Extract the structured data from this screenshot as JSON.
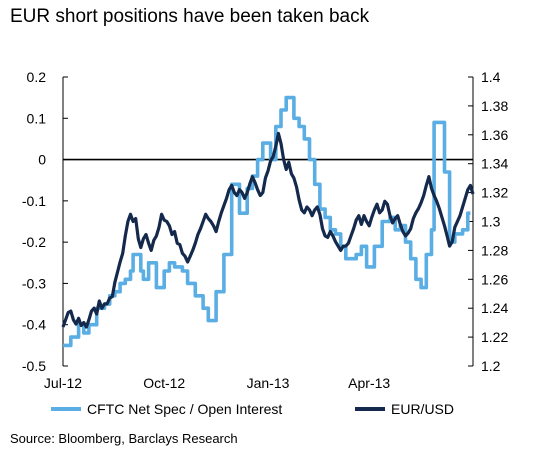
{
  "chart_data": {
    "type": "line",
    "title": "EUR short positions have been taken back",
    "source": "Source: Bloomberg, Barclays Research",
    "x_tick_labels": [
      "Jul-12",
      "Oct-12",
      "Jan-13",
      "Apr-13"
    ],
    "y_left": {
      "range": [
        -0.5,
        0.2
      ],
      "ticks": [
        "0.2",
        "0.1",
        "0",
        "-0.1",
        "-0.2",
        "-0.3",
        "-0.4",
        "-0.5"
      ]
    },
    "y_right": {
      "range": [
        1.2,
        1.4
      ],
      "ticks": [
        "1.4",
        "1.38",
        "1.36",
        "1.34",
        "1.32",
        "1.3",
        "1.28",
        "1.26",
        "1.24",
        "1.22",
        "1.2"
      ]
    },
    "zero_line": 0,
    "grid": false,
    "legend_position": "bottom",
    "colors": {
      "cftc": "#5aaee3",
      "eurusd": "#14294b",
      "axis": "#000000"
    },
    "series": [
      {
        "name": "CFTC Net Spec / Open Interest",
        "axis": "left",
        "points": [
          [
            0,
            -0.45
          ],
          [
            3,
            -0.45
          ],
          [
            3,
            -0.43
          ],
          [
            6,
            -0.43
          ],
          [
            6,
            -0.4
          ],
          [
            8,
            -0.4
          ],
          [
            8,
            -0.42
          ],
          [
            10,
            -0.42
          ],
          [
            10,
            -0.4
          ],
          [
            13,
            -0.4
          ],
          [
            13,
            -0.36
          ],
          [
            16,
            -0.36
          ],
          [
            16,
            -0.35
          ],
          [
            18,
            -0.35
          ],
          [
            18,
            -0.33
          ],
          [
            20,
            -0.33
          ],
          [
            20,
            -0.32
          ],
          [
            22,
            -0.32
          ],
          [
            22,
            -0.3
          ],
          [
            24,
            -0.3
          ],
          [
            24,
            -0.29
          ],
          [
            26,
            -0.29
          ],
          [
            26,
            -0.27
          ],
          [
            27,
            -0.27
          ],
          [
            27,
            -0.23
          ],
          [
            30,
            -0.23
          ],
          [
            30,
            -0.27
          ],
          [
            31,
            -0.27
          ],
          [
            31,
            -0.29
          ],
          [
            33,
            -0.29
          ],
          [
            33,
            -0.25
          ],
          [
            36,
            -0.25
          ],
          [
            36,
            -0.31
          ],
          [
            39,
            -0.31
          ],
          [
            39,
            -0.27
          ],
          [
            41,
            -0.27
          ],
          [
            41,
            -0.25
          ],
          [
            43,
            -0.25
          ],
          [
            43,
            -0.26
          ],
          [
            46,
            -0.26
          ],
          [
            46,
            -0.27
          ],
          [
            48,
            -0.27
          ],
          [
            48,
            -0.3
          ],
          [
            51,
            -0.3
          ],
          [
            51,
            -0.33
          ],
          [
            54,
            -0.33
          ],
          [
            54,
            -0.36
          ],
          [
            56,
            -0.36
          ],
          [
            56,
            -0.39
          ],
          [
            59,
            -0.39
          ],
          [
            59,
            -0.32
          ],
          [
            62,
            -0.32
          ],
          [
            62,
            -0.23
          ],
          [
            65,
            -0.23
          ],
          [
            65,
            -0.06
          ],
          [
            68,
            -0.06
          ],
          [
            68,
            -0.13
          ],
          [
            71,
            -0.13
          ],
          [
            71,
            -0.07
          ],
          [
            73,
            -0.07
          ],
          [
            73,
            -0.04
          ],
          [
            75,
            -0.04
          ],
          [
            75,
            0.0
          ],
          [
            77,
            0.0
          ],
          [
            77,
            0.04
          ],
          [
            80,
            0.04
          ],
          [
            80,
            0.0
          ],
          [
            82,
            0.0
          ],
          [
            82,
            0.08
          ],
          [
            84,
            0.08
          ],
          [
            84,
            0.12
          ],
          [
            86,
            0.12
          ],
          [
            86,
            0.15
          ],
          [
            89,
            0.15
          ],
          [
            89,
            0.1
          ],
          [
            91,
            0.1
          ],
          [
            91,
            0.08
          ],
          [
            93,
            0.08
          ],
          [
            93,
            0.05
          ],
          [
            95,
            0.05
          ],
          [
            95,
            0.0
          ],
          [
            97,
            0.0
          ],
          [
            97,
            -0.06
          ],
          [
            99,
            -0.06
          ],
          [
            99,
            -0.12
          ],
          [
            101,
            -0.12
          ],
          [
            101,
            -0.14
          ],
          [
            103,
            -0.14
          ],
          [
            103,
            -0.17
          ],
          [
            105,
            -0.17
          ],
          [
            105,
            -0.18
          ],
          [
            107,
            -0.18
          ],
          [
            107,
            -0.21
          ],
          [
            109,
            -0.21
          ],
          [
            109,
            -0.24
          ],
          [
            113,
            -0.24
          ],
          [
            113,
            -0.23
          ],
          [
            115,
            -0.23
          ],
          [
            115,
            -0.21
          ],
          [
            117,
            -0.21
          ],
          [
            117,
            -0.26
          ],
          [
            120,
            -0.26
          ],
          [
            120,
            -0.21
          ],
          [
            123,
            -0.21
          ],
          [
            123,
            -0.15
          ],
          [
            126,
            -0.15
          ],
          [
            126,
            -0.14
          ],
          [
            128,
            -0.14
          ],
          [
            128,
            -0.17
          ],
          [
            130,
            -0.17
          ],
          [
            130,
            -0.16
          ],
          [
            132,
            -0.16
          ],
          [
            132,
            -0.2
          ],
          [
            134,
            -0.2
          ],
          [
            134,
            -0.24
          ],
          [
            136,
            -0.24
          ],
          [
            136,
            -0.29
          ],
          [
            138,
            -0.29
          ],
          [
            138,
            -0.31
          ],
          [
            140,
            -0.31
          ],
          [
            140,
            -0.23
          ],
          [
            142,
            -0.23
          ],
          [
            142,
            -0.17
          ],
          [
            143,
            -0.17
          ],
          [
            143,
            0.09
          ],
          [
            147,
            0.09
          ],
          [
            147,
            -0.03
          ],
          [
            149,
            -0.03
          ],
          [
            149,
            -0.2
          ],
          [
            151,
            -0.2
          ],
          [
            151,
            -0.18
          ],
          [
            154,
            -0.18
          ],
          [
            154,
            -0.17
          ],
          [
            156,
            -0.17
          ],
          [
            156,
            -0.13
          ],
          [
            157,
            -0.13
          ]
        ]
      },
      {
        "name": "EUR/USD",
        "axis": "right",
        "points": [
          [
            0,
            1.227
          ],
          [
            2,
            1.237
          ],
          [
            3,
            1.238
          ],
          [
            4,
            1.232
          ],
          [
            5,
            1.229
          ],
          [
            6,
            1.233
          ],
          [
            7,
            1.228
          ],
          [
            8,
            1.23
          ],
          [
            9,
            1.227
          ],
          [
            10,
            1.232
          ],
          [
            11,
            1.238
          ],
          [
            12,
            1.24
          ],
          [
            13,
            1.236
          ],
          [
            14,
            1.245
          ],
          [
            15,
            1.24
          ],
          [
            16,
            1.243
          ],
          [
            17,
            1.243
          ],
          [
            18,
            1.247
          ],
          [
            19,
            1.248
          ],
          [
            20,
            1.258
          ],
          [
            21,
            1.265
          ],
          [
            22,
            1.272
          ],
          [
            23,
            1.278
          ],
          [
            24,
            1.29
          ],
          [
            25,
            1.3
          ],
          [
            26,
            1.305
          ],
          [
            27,
            1.3
          ],
          [
            28,
            1.302
          ],
          [
            29,
            1.288
          ],
          [
            30,
            1.282
          ],
          [
            31,
            1.288
          ],
          [
            32,
            1.291
          ],
          [
            33,
            1.285
          ],
          [
            34,
            1.28
          ],
          [
            35,
            1.287
          ],
          [
            36,
            1.29
          ],
          [
            37,
            1.296
          ],
          [
            38,
            1.305
          ],
          [
            39,
            1.301
          ],
          [
            40,
            1.3
          ],
          [
            41,
            1.297
          ],
          [
            42,
            1.291
          ],
          [
            43,
            1.293
          ],
          [
            44,
            1.285
          ],
          [
            45,
            1.284
          ],
          [
            46,
            1.278
          ],
          [
            47,
            1.276
          ],
          [
            48,
            1.272
          ],
          [
            49,
            1.276
          ],
          [
            50,
            1.28
          ],
          [
            51,
            1.285
          ],
          [
            52,
            1.291
          ],
          [
            53,
            1.295
          ],
          [
            54,
            1.3
          ],
          [
            55,
            1.305
          ],
          [
            56,
            1.302
          ],
          [
            57,
            1.3
          ],
          [
            58,
            1.297
          ],
          [
            59,
            1.293
          ],
          [
            60,
            1.3
          ],
          [
            61,
            1.306
          ],
          [
            62,
            1.311
          ],
          [
            63,
            1.316
          ],
          [
            64,
            1.322
          ],
          [
            65,
            1.325
          ],
          [
            66,
            1.32
          ],
          [
            67,
            1.318
          ],
          [
            68,
            1.322
          ],
          [
            69,
            1.32
          ],
          [
            70,
            1.316
          ],
          [
            71,
            1.32
          ],
          [
            72,
            1.326
          ],
          [
            73,
            1.331
          ],
          [
            74,
            1.327
          ],
          [
            75,
            1.322
          ],
          [
            76,
            1.318
          ],
          [
            77,
            1.32
          ],
          [
            78,
            1.33
          ],
          [
            79,
            1.335
          ],
          [
            80,
            1.342
          ],
          [
            81,
            1.345
          ],
          [
            82,
            1.352
          ],
          [
            83,
            1.361
          ],
          [
            84,
            1.354
          ],
          [
            85,
            1.343
          ],
          [
            86,
            1.336
          ],
          [
            87,
            1.341
          ],
          [
            88,
            1.333
          ],
          [
            89,
            1.33
          ],
          [
            90,
            1.324
          ],
          [
            91,
            1.315
          ],
          [
            92,
            1.308
          ],
          [
            93,
            1.306
          ],
          [
            94,
            1.31
          ],
          [
            95,
            1.308
          ],
          [
            96,
            1.304
          ],
          [
            97,
            1.308
          ],
          [
            98,
            1.31
          ],
          [
            99,
            1.305
          ],
          [
            100,
            1.295
          ],
          [
            101,
            1.29
          ],
          [
            102,
            1.289
          ],
          [
            103,
            1.293
          ],
          [
            104,
            1.29
          ],
          [
            105,
            1.286
          ],
          [
            106,
            1.283
          ],
          [
            107,
            1.28
          ],
          [
            108,
            1.283
          ],
          [
            109,
            1.283
          ],
          [
            110,
            1.285
          ],
          [
            111,
            1.29
          ],
          [
            112,
            1.295
          ],
          [
            113,
            1.301
          ],
          [
            114,
            1.304
          ],
          [
            115,
            1.298
          ],
          [
            116,
            1.304
          ],
          [
            117,
            1.3
          ],
          [
            118,
            1.297
          ],
          [
            119,
            1.303
          ],
          [
            120,
            1.308
          ],
          [
            121,
            1.312
          ],
          [
            122,
            1.306
          ],
          [
            123,
            1.308
          ],
          [
            124,
            1.314
          ],
          [
            125,
            1.312
          ],
          [
            126,
            1.304
          ],
          [
            127,
            1.299
          ],
          [
            128,
            1.302
          ],
          [
            129,
            1.304
          ],
          [
            130,
            1.298
          ],
          [
            131,
            1.293
          ],
          [
            132,
            1.29
          ],
          [
            133,
            1.292
          ],
          [
            134,
            1.295
          ],
          [
            135,
            1.302
          ],
          [
            136,
            1.306
          ],
          [
            137,
            1.309
          ],
          [
            138,
            1.313
          ],
          [
            139,
            1.318
          ],
          [
            140,
            1.325
          ],
          [
            141,
            1.331
          ],
          [
            142,
            1.323
          ],
          [
            143,
            1.318
          ],
          [
            144,
            1.314
          ],
          [
            145,
            1.309
          ],
          [
            146,
            1.303
          ],
          [
            147,
            1.297
          ],
          [
            148,
            1.29
          ],
          [
            149,
            1.283
          ],
          [
            150,
            1.286
          ],
          [
            151,
            1.296
          ],
          [
            152,
            1.3
          ],
          [
            153,
            1.304
          ],
          [
            154,
            1.31
          ],
          [
            155,
            1.316
          ],
          [
            156,
            1.322
          ],
          [
            157,
            1.325
          ],
          [
            158,
            1.319
          ]
        ]
      }
    ]
  }
}
